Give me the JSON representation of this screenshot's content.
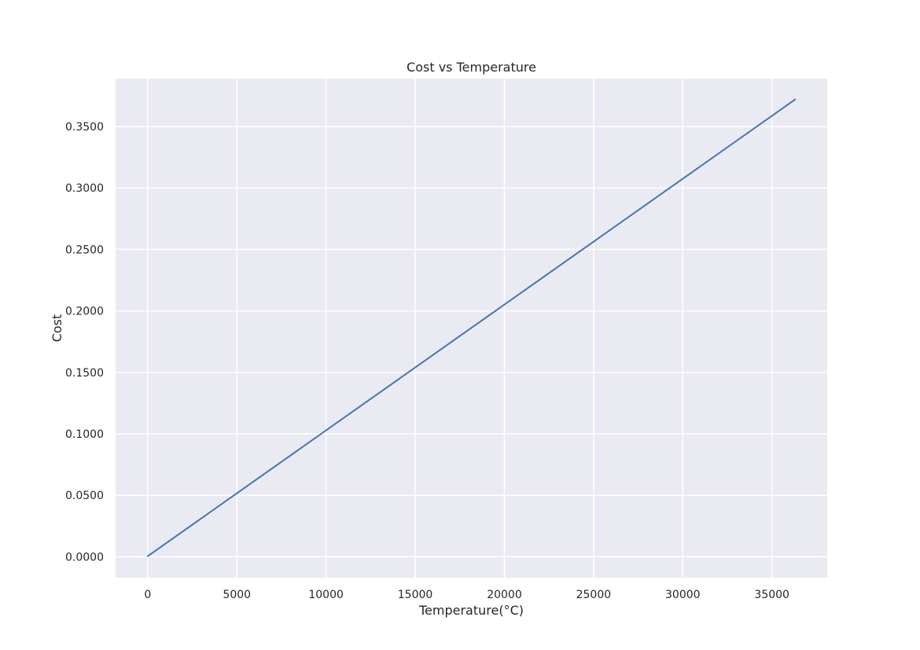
{
  "chart_data": {
    "type": "line",
    "title": "Cost vs Temperature",
    "xlabel": "Temperature(°C)",
    "ylabel": "Cost",
    "xlim": [
      -1800,
      38100
    ],
    "ylim": [
      -0.017,
      0.389
    ],
    "x_ticks": [
      0,
      5000,
      10000,
      15000,
      20000,
      25000,
      30000,
      35000
    ],
    "x_tick_labels": [
      "0",
      "5000",
      "10000",
      "15000",
      "20000",
      "25000",
      "30000",
      "35000"
    ],
    "y_ticks": [
      0,
      0.05,
      0.1,
      0.15,
      0.2,
      0.25,
      0.3,
      0.35
    ],
    "y_tick_labels": [
      "0.0000",
      "0.0500",
      "0.1000",
      "0.1500",
      "0.2000",
      "0.2500",
      "0.3000",
      "0.3500"
    ],
    "grid": true,
    "legend": "none",
    "series": [
      {
        "color": "#4c72b0",
        "x": [
          0,
          36300
        ],
        "y": [
          0.0005,
          0.372
        ]
      }
    ]
  },
  "colors": {
    "plot_background": "#eaeaf2",
    "grid": "#ffffff",
    "text": "#262626"
  }
}
